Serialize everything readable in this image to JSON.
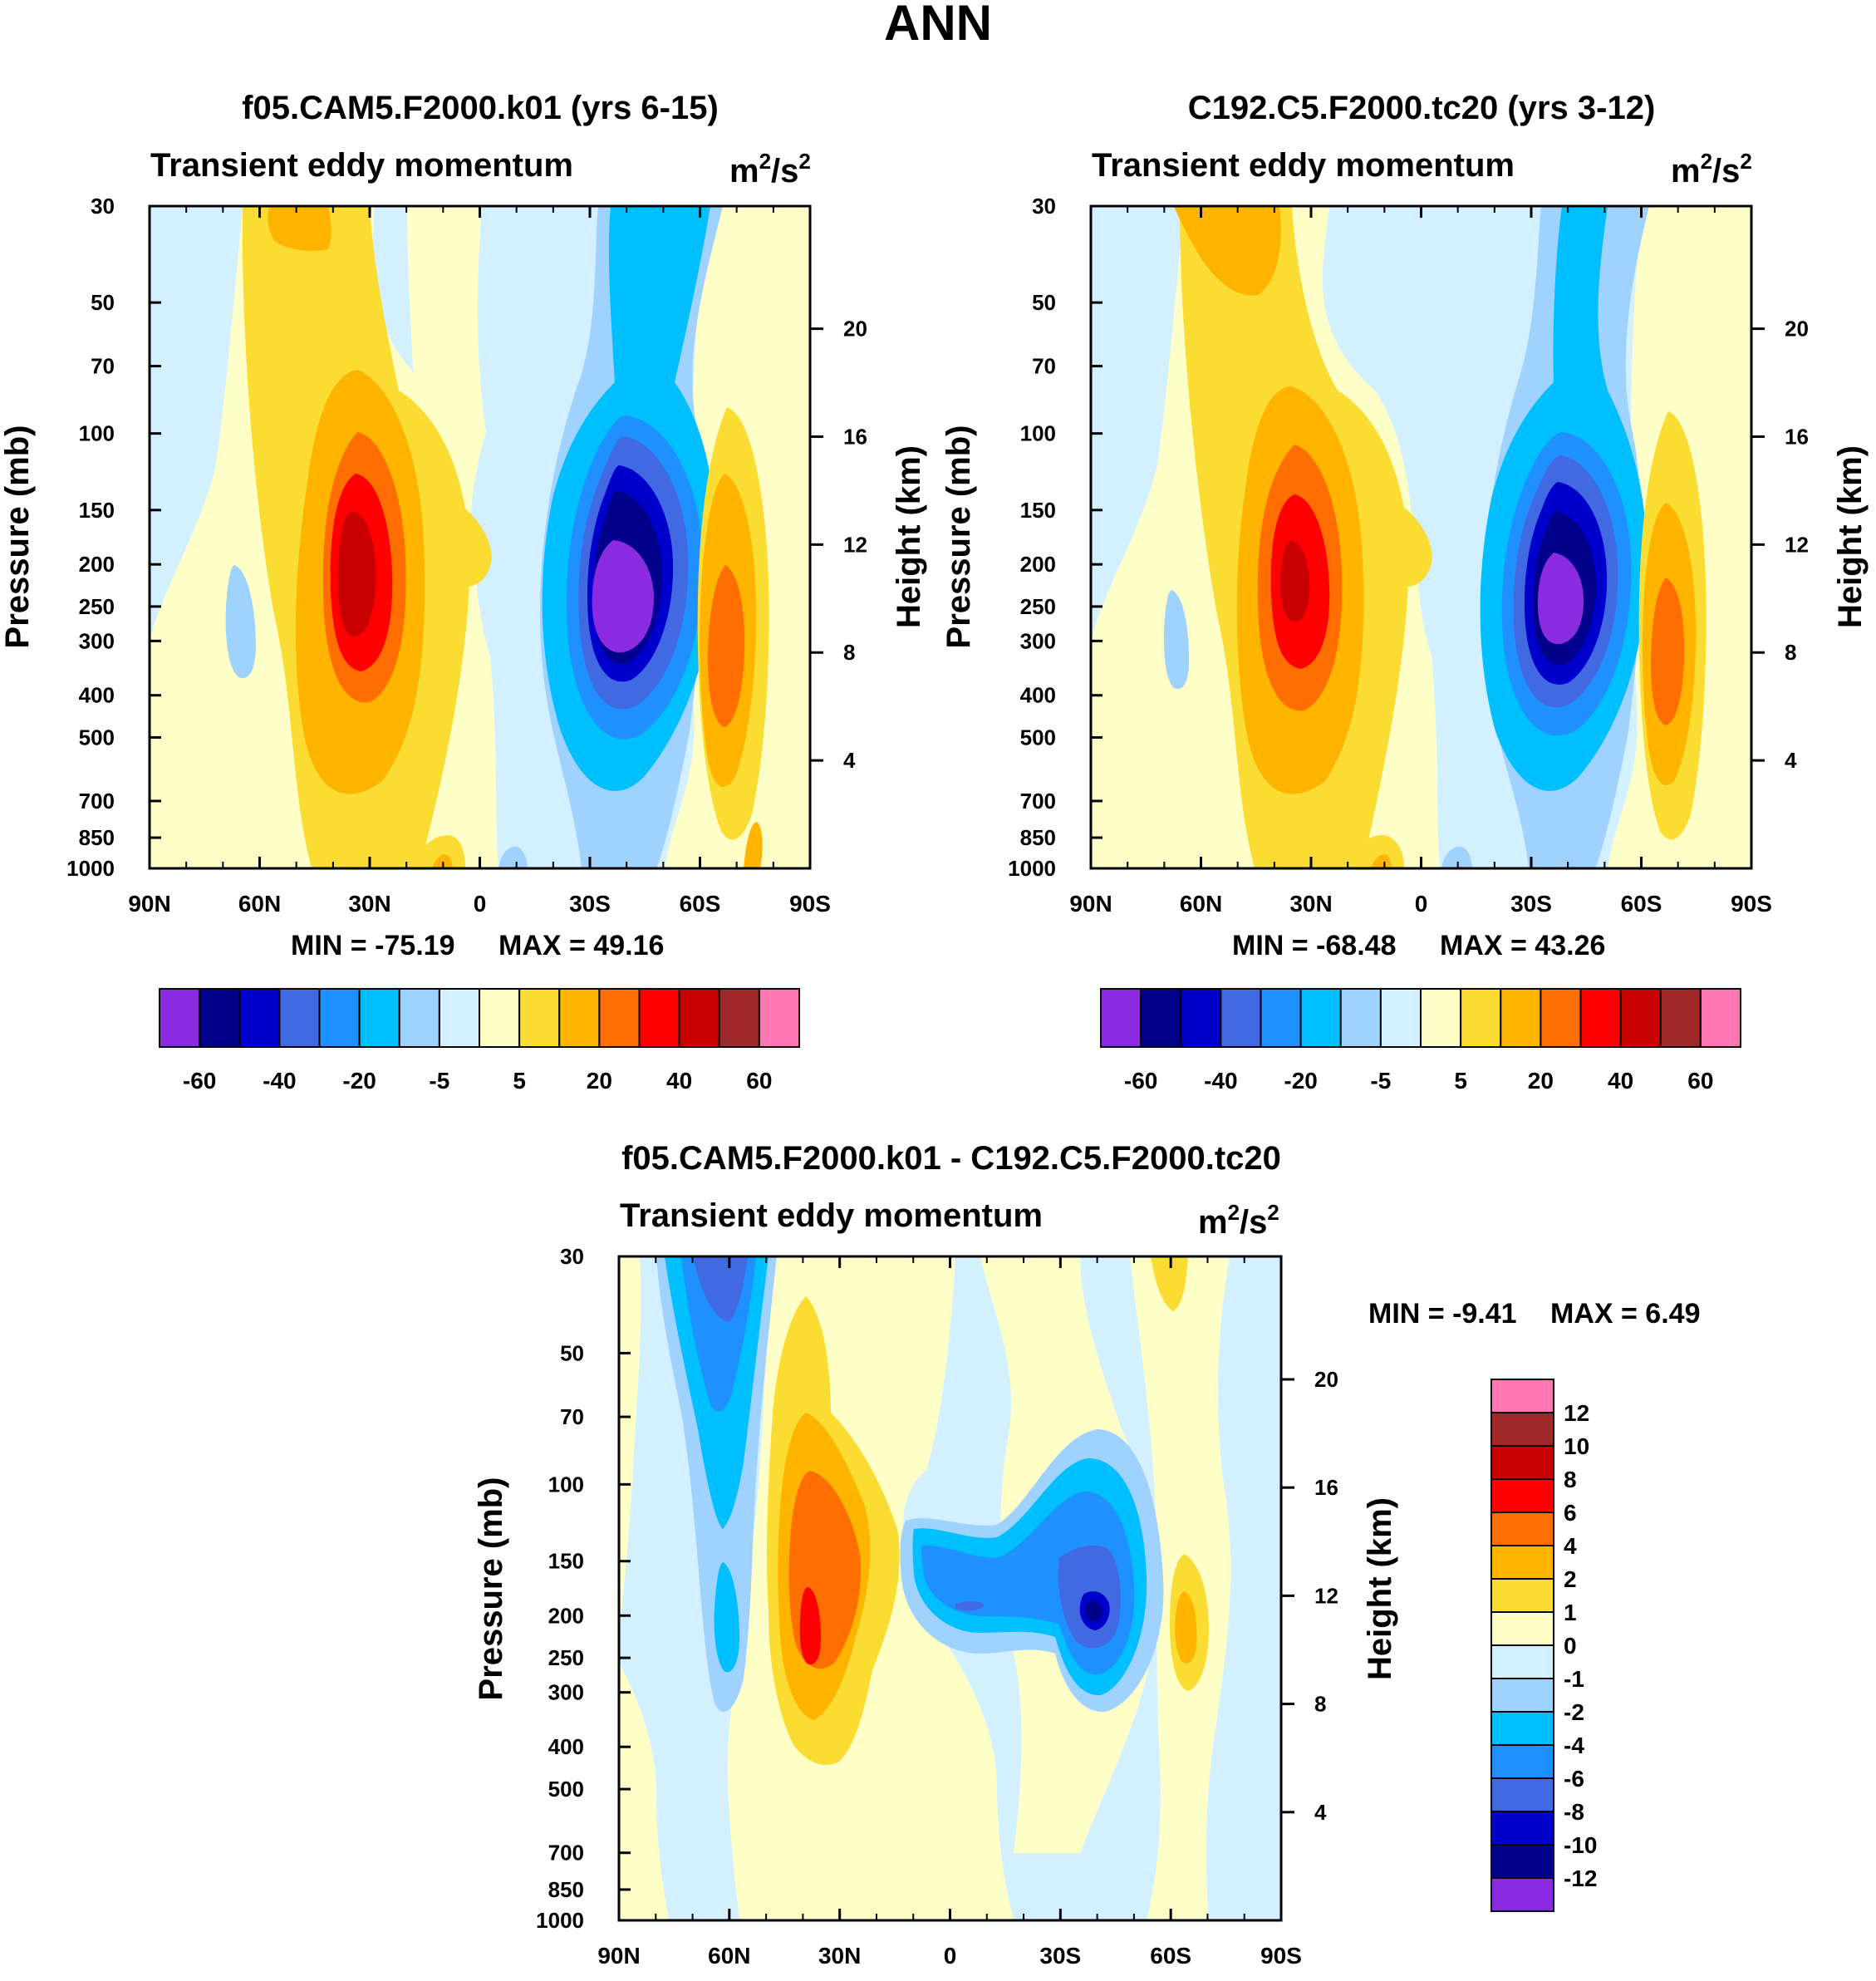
{
  "figure": {
    "title": "ANN"
  },
  "colors": {
    "p1": [
      "#8a2be2",
      "#00008b",
      "#0000cd",
      "#4169e1",
      "#1e90ff",
      "#00bfff",
      "#a0d2ff",
      "#d2f0ff",
      "#ffffc8",
      "#fadc32",
      "#ffb400",
      "#ff6e00",
      "#ff0000",
      "#c80000",
      "#a02828",
      "#ff78b4"
    ],
    "diff": [
      "#8a2be2",
      "#00008b",
      "#0000cd",
      "#4169e1",
      "#1e90ff",
      "#00bfff",
      "#a0d2ff",
      "#d2f0ff",
      "#ffffc8",
      "#fadc32",
      "#ffb400",
      "#ff6e00",
      "#ff0000",
      "#c80000",
      "#a02828",
      "#ff78b4"
    ]
  },
  "chart_data": [
    {
      "id": "panel1",
      "type": "heatmap",
      "title": "f05.CAM5.F2000.k01 (yrs 6-15)",
      "subtitle": "Transient eddy momentum",
      "units_base": "m",
      "units_sep": "/s",
      "units_exp": "2",
      "xlabel": "",
      "ylabel": "Pressure (mb)",
      "ylabel2": "Height (km)",
      "x_ticks": [
        "90N",
        "60N",
        "30N",
        "0",
        "30S",
        "60S",
        "90S"
      ],
      "y_ticks": [
        "30",
        "50",
        "70",
        "100",
        "150",
        "200",
        "250",
        "300",
        "400",
        "500",
        "700",
        "850",
        "1000"
      ],
      "y2_ticks": [
        "20",
        "16",
        "12",
        "8",
        "4"
      ],
      "xlim": [
        90,
        -90
      ],
      "ylim_mb": [
        1000,
        30
      ],
      "min_label": "MIN = -75.19",
      "max_label": "MAX =  49.16",
      "min": -75.19,
      "max": 49.16,
      "levels": [
        "-60",
        "-40",
        "-20",
        "-5",
        "5",
        "20",
        "40",
        "60"
      ],
      "features": [
        {
          "lat": 33,
          "p": 210,
          "value": 49.16
        },
        {
          "lat": -40,
          "p": 240,
          "value": -75.19
        },
        {
          "lat": -68,
          "p": 280,
          "value": 25
        },
        {
          "lat": -5,
          "p": 180,
          "value": 8
        },
        {
          "lat": 65,
          "p": 260,
          "value": -4
        }
      ]
    },
    {
      "id": "panel2",
      "type": "heatmap",
      "title": "C192.C5.F2000.tc20 (yrs 3-12)",
      "subtitle": "Transient eddy momentum",
      "units_base": "m",
      "units_sep": "/s",
      "units_exp": "2",
      "xlabel": "",
      "ylabel": "Pressure (mb)",
      "ylabel2": "Height (km)",
      "x_ticks": [
        "90N",
        "60N",
        "30N",
        "0",
        "30S",
        "60S",
        "90S"
      ],
      "y_ticks": [
        "30",
        "50",
        "70",
        "100",
        "150",
        "200",
        "250",
        "300",
        "400",
        "500",
        "700",
        "850",
        "1000"
      ],
      "y2_ticks": [
        "20",
        "16",
        "12",
        "8",
        "4"
      ],
      "xlim": [
        90,
        -90
      ],
      "ylim_mb": [
        1000,
        30
      ],
      "min_label": "MIN = -68.48",
      "max_label": "MAX =  43.26",
      "min": -68.48,
      "max": 43.26,
      "levels": [
        "-60",
        "-40",
        "-20",
        "-5",
        "5",
        "20",
        "40",
        "60"
      ],
      "features": [
        {
          "lat": 33,
          "p": 210,
          "value": 43.26
        },
        {
          "lat": -39,
          "p": 240,
          "value": -68.48
        },
        {
          "lat": -68,
          "p": 290,
          "value": 22
        },
        {
          "lat": -5,
          "p": 190,
          "value": 8
        },
        {
          "lat": 64,
          "p": 260,
          "value": -4
        }
      ]
    },
    {
      "id": "diff",
      "type": "heatmap",
      "title": "f05.CAM5.F2000.k01 - C192.C5.F2000.tc20",
      "subtitle": "Transient eddy momentum",
      "units_base": "m",
      "units_sep": "/s",
      "units_exp": "2",
      "xlabel": "",
      "ylabel": "Pressure (mb)",
      "ylabel2": "Height (km)",
      "x_ticks": [
        "90N",
        "60N",
        "30N",
        "0",
        "30S",
        "60S",
        "90S"
      ],
      "y_ticks": [
        "30",
        "50",
        "70",
        "100",
        "150",
        "200",
        "250",
        "300",
        "400",
        "500",
        "700",
        "850",
        "1000"
      ],
      "y2_ticks": [
        "20",
        "16",
        "12",
        "8",
        "4"
      ],
      "xlim": [
        90,
        -90
      ],
      "ylim_mb": [
        1000,
        30
      ],
      "min_label": "MIN =  -9.41",
      "max_label": "MAX =   6.49",
      "min": -9.41,
      "max": 6.49,
      "levels": [
        "12",
        "10",
        "8",
        "6",
        "4",
        "2",
        "1",
        "0",
        "-1",
        "-2",
        "-4",
        "-6",
        "-8",
        "-10",
        "-12"
      ],
      "features": [
        {
          "lat": 62,
          "p": 60,
          "value": -6
        },
        {
          "lat": 60,
          "p": 220,
          "value": -4
        },
        {
          "lat": 37,
          "p": 200,
          "value": 6.49
        },
        {
          "lat": 0,
          "p": 200,
          "value": -4
        },
        {
          "lat": -40,
          "p": 200,
          "value": -9.41
        },
        {
          "lat": -64,
          "p": 220,
          "value": 3
        }
      ]
    }
  ]
}
